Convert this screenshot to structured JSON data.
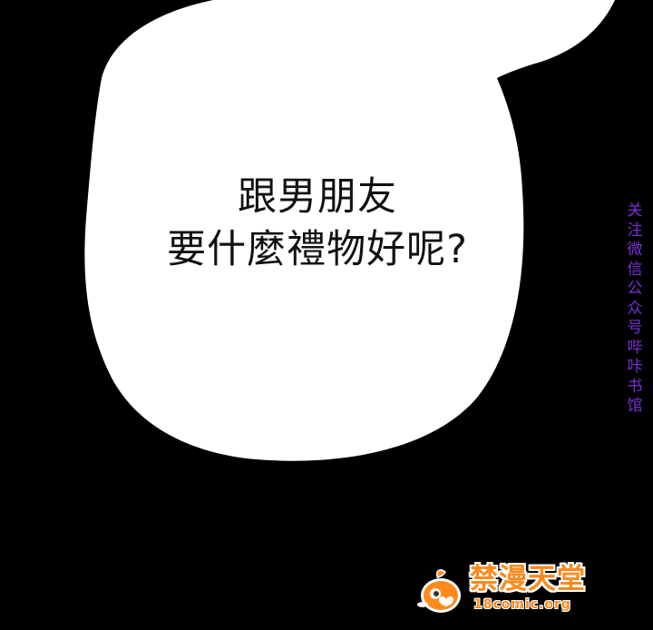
{
  "panel": {
    "background_color": "#000000",
    "bubble_color": "#ffffff"
  },
  "speech_bubble": {
    "lines": [
      "跟男朋友",
      "要什麼禮物好呢?"
    ],
    "text_color": "#111111"
  },
  "side_watermark": {
    "text": "关注微信公众号哔咔书馆",
    "color": "#7b2fd6"
  },
  "logo": {
    "name": "禁漫天堂",
    "url": "18comic.org",
    "mascot_icon": "peach-mascot-icon",
    "color": "#ff8a1c"
  }
}
